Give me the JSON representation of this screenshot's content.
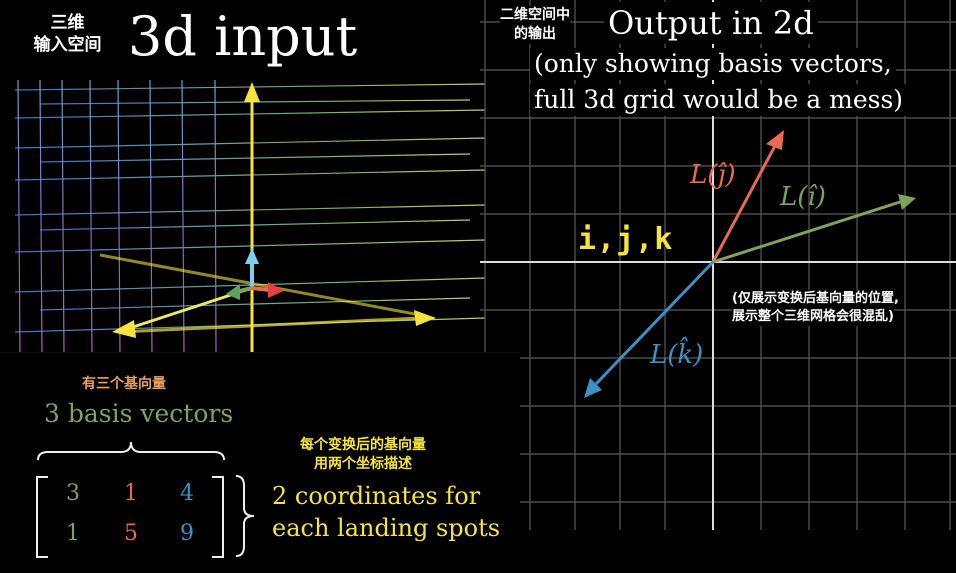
{
  "left_panel": {
    "cn_title": "三维\n输入空间",
    "title": "3d input"
  },
  "right_panel": {
    "cn_title": "二维空间中\n的输出",
    "title": "Output in 2d",
    "subtitle_line1": "(only showing basis vectors,",
    "subtitle_line2": "full 3d grid would be a mess)",
    "cn_note_line1": "(仅展示变换后基向量的位置,",
    "cn_note_line2": "展示整个三维网格会很混乱)",
    "vector_labels": {
      "j": "L(ĵ)",
      "i": "L(î)",
      "k": "L(k̂)"
    },
    "ijk_label": "i,j,k",
    "colors": {
      "i": "#7fa35c",
      "j": "#e86a50",
      "k": "#3e8fc4",
      "ijk": "#f4e43c",
      "grid": "#777777"
    }
  },
  "bottom_panel": {
    "cn_basis": "有三个基向量",
    "basis_text": "3 basis vectors",
    "cn_coords_line1": "每个变换后的基向量",
    "cn_coords_line2": "用两个坐标描述",
    "coords_line1": "2 coordinates for",
    "coords_line2": "each landing spots",
    "matrix": [
      [
        "3",
        "1",
        "4"
      ],
      [
        "1",
        "5",
        "9"
      ]
    ],
    "matrix_colors": [
      "#7fa35c",
      "#e86a50",
      "#3e8fc4"
    ],
    "colors": {
      "cn_basis": "#e8a05a",
      "basis_text": "#7fa35c",
      "coords": "#f4e43c"
    }
  }
}
